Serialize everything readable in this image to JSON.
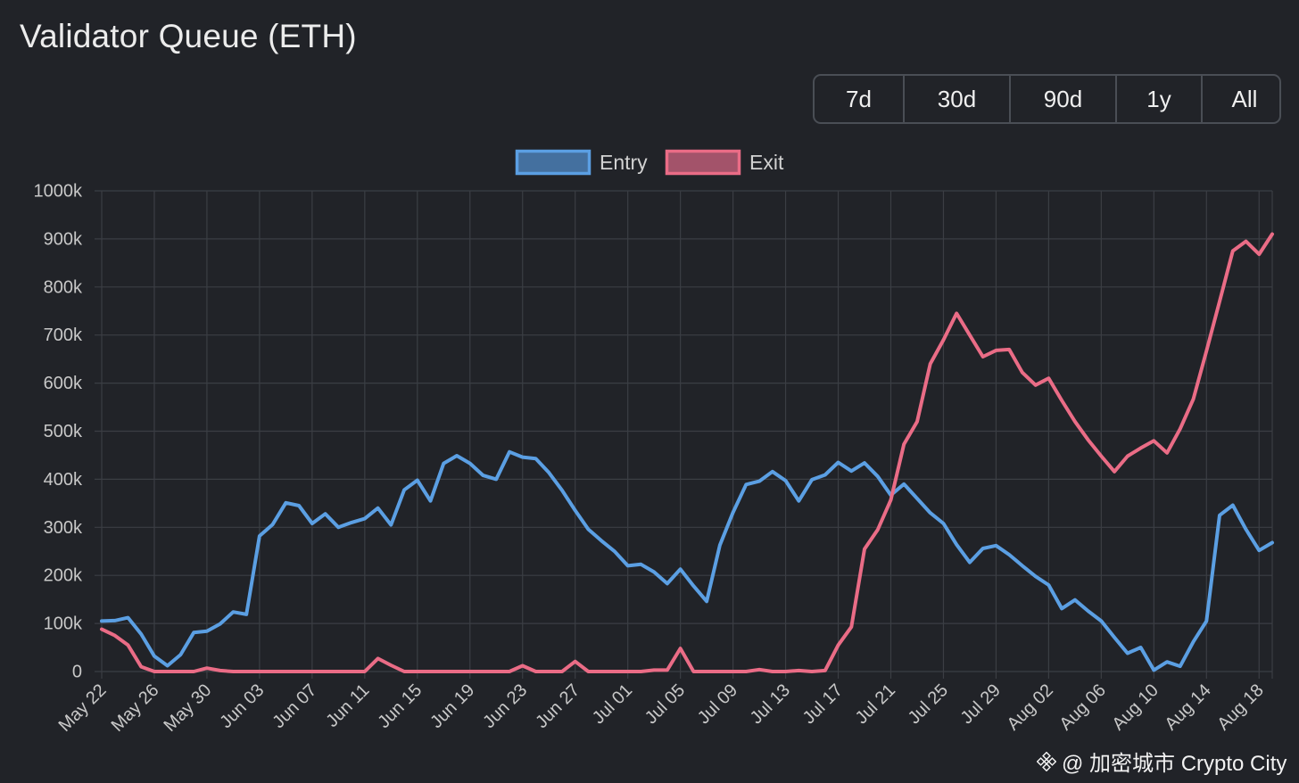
{
  "header": {
    "title": "Validator Queue (ETH)"
  },
  "range_buttons": [
    "7d",
    "30d",
    "90d",
    "1y",
    "All"
  ],
  "watermark": "@ 加密城市 Crypto City",
  "colors": {
    "background": "#212328",
    "entry": "#5b9fe3",
    "exit": "#ea6c86",
    "grid": "#3b3e44"
  },
  "chart_data": {
    "type": "line",
    "title": "",
    "xlabel": "",
    "ylabel": "",
    "ylim": [
      0,
      1000000
    ],
    "y_ticks": [
      "0",
      "100k",
      "200k",
      "300k",
      "400k",
      "500k",
      "600k",
      "700k",
      "800k",
      "900k",
      "1000k"
    ],
    "x_tick_labels": [
      "May 22",
      "May 26",
      "May 30",
      "Jun 03",
      "Jun 07",
      "Jun 11",
      "Jun 15",
      "Jun 19",
      "Jun 23",
      "Jun 27",
      "Jul 01",
      "Jul 05",
      "Jul 09",
      "Jul 13",
      "Jul 17",
      "Jul 21",
      "Jul 25",
      "Jul 29",
      "Aug 02",
      "Aug 06",
      "Aug 10",
      "Aug 14",
      "Aug 18"
    ],
    "x_start": "May 22",
    "legend": {
      "position": "top-center"
    },
    "grid": true,
    "series": [
      {
        "name": "Entry",
        "color": "#5b9fe3",
        "values": [
          105000,
          106000,
          112000,
          78000,
          32000,
          12000,
          35000,
          81000,
          84000,
          99000,
          124000,
          119000,
          282000,
          306000,
          351000,
          345000,
          308000,
          328000,
          300000,
          310000,
          318000,
          340000,
          305000,
          378000,
          398000,
          355000,
          433000,
          449000,
          433000,
          408000,
          400000,
          457000,
          446000,
          443000,
          414000,
          377000,
          335000,
          296000,
          272000,
          250000,
          220000,
          223000,
          207000,
          183000,
          213000,
          178000,
          146000,
          263000,
          331000,
          389000,
          396000,
          416000,
          397000,
          355000,
          399000,
          409000,
          435000,
          417000,
          434000,
          406000,
          367000,
          390000,
          360000,
          330000,
          308000,
          264000,
          227000,
          256000,
          262000,
          243000,
          220000,
          198000,
          180000,
          131000,
          149000,
          126000,
          105000,
          71000,
          38000,
          50000,
          3000,
          20000,
          11000,
          62000,
          105000,
          325000,
          346000,
          296000,
          252000,
          268000
        ]
      },
      {
        "name": "Exit",
        "color": "#ea6c86",
        "values": [
          88000,
          75000,
          55000,
          10000,
          0,
          0,
          0,
          0,
          7000,
          2000,
          0,
          0,
          0,
          0,
          0,
          0,
          0,
          0,
          0,
          0,
          0,
          27000,
          13000,
          0,
          0,
          0,
          0,
          0,
          0,
          0,
          0,
          0,
          12000,
          0,
          0,
          0,
          21000,
          0,
          0,
          0,
          0,
          0,
          3000,
          3000,
          48000,
          0,
          0,
          0,
          0,
          0,
          4000,
          0,
          0,
          2000,
          0,
          2000,
          55000,
          93000,
          255000,
          295000,
          357000,
          473000,
          520000,
          640000,
          690000,
          745000,
          700000,
          655000,
          668000,
          670000,
          622000,
          596000,
          610000,
          564000,
          520000,
          482000,
          448000,
          416000,
          448000,
          465000,
          480000,
          455000,
          505000,
          567000,
          667000,
          770000,
          875000,
          895000,
          868000,
          910000
        ]
      }
    ]
  }
}
